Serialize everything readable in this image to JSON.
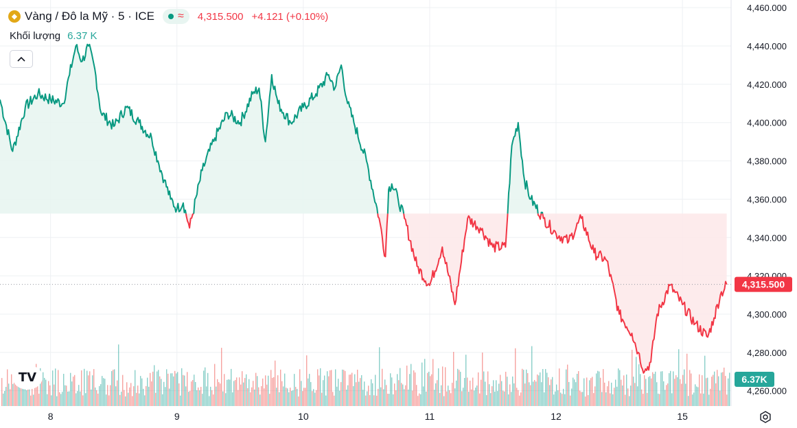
{
  "header": {
    "title": "Vàng / Đô la Mỹ · 5 · ICE",
    "price": "4,315.500",
    "change": "+4.121 (+0.10%)",
    "wave_glyph": "≈"
  },
  "volume": {
    "label": "Khối lượng",
    "value": "6.37 K"
  },
  "price_badge": "4,315.500",
  "volume_badge": "6.37K",
  "logo_text": "TV",
  "colors": {
    "up": "#089981",
    "down": "#f23645",
    "up_fill": "#e6f4f0",
    "down_fill": "#fde8e9",
    "vol_up": "#26a69a",
    "vol_down": "#ef5350",
    "grid": "#eef0f3",
    "text": "#131722",
    "baseline": "#b2b5be"
  },
  "icons": {
    "collapse": "chevron-up-icon",
    "settings": "gear-icon",
    "symbol": "gold-icon"
  },
  "chart_data": {
    "type": "area",
    "baseline_value": 4352.5,
    "last_price": 4315.5,
    "y_axis": {
      "ticks": [
        4260,
        4280,
        4300,
        4320,
        4340,
        4360,
        4380,
        4400,
        4420,
        4440,
        4460
      ],
      "tick_labels": [
        "4,260.000",
        "4,280.000",
        "4,300.000",
        "4,320.000",
        "4,340.000",
        "4,360.000",
        "4,380.000",
        "4,400.000",
        "4,420.000",
        "4,440.000",
        "4,460.000"
      ],
      "ylim": [
        4252,
        4464
      ]
    },
    "x_axis": {
      "ticks": [
        0.8,
        2.8,
        4.8,
        6.8,
        8.8,
        10.8
      ],
      "tick_labels": [
        "8",
        "9",
        "10",
        "11",
        "12",
        "15"
      ],
      "xlim": [
        0,
        11.57
      ]
    },
    "x": [
      0,
      0.2,
      0.4,
      0.6,
      0.8,
      1.0,
      1.1,
      1.2,
      1.3,
      1.4,
      1.5,
      1.6,
      1.8,
      2.0,
      2.2,
      2.4,
      2.5,
      2.6,
      2.7,
      2.8,
      2.9,
      3.0,
      3.2,
      3.4,
      3.6,
      3.8,
      4.0,
      4.1,
      4.2,
      4.3,
      4.4,
      4.6,
      4.8,
      5.0,
      5.2,
      5.3,
      5.4,
      5.5,
      5.6,
      5.8,
      6.0,
      6.1,
      6.15,
      6.2,
      6.3,
      6.4,
      6.6,
      6.8,
      7.0,
      7.2,
      7.4,
      7.6,
      7.8,
      8.0,
      8.1,
      8.2,
      8.3,
      8.4,
      8.6,
      8.8,
      9.0,
      9.2,
      9.4,
      9.6,
      9.8,
      10.0,
      10.1,
      10.2,
      10.3,
      10.4,
      10.6,
      10.8,
      11.0,
      11.2,
      11.3,
      11.4,
      11.5
    ],
    "values": [
      4412,
      4385,
      4408,
      4415,
      4412,
      4410,
      4425,
      4440,
      4432,
      4440,
      4428,
      4405,
      4398,
      4408,
      4400,
      4392,
      4380,
      4370,
      4360,
      4355,
      4358,
      4345,
      4375,
      4392,
      4405,
      4400,
      4415,
      4418,
      4390,
      4425,
      4410,
      4400,
      4408,
      4415,
      4425,
      4418,
      4430,
      4410,
      4400,
      4380,
      4350,
      4330,
      4365,
      4368,
      4360,
      4350,
      4325,
      4315,
      4335,
      4305,
      4350,
      4345,
      4335,
      4335,
      4388,
      4400,
      4370,
      4360,
      4350,
      4342,
      4338,
      4350,
      4332,
      4328,
      4300,
      4290,
      4280,
      4270,
      4275,
      4300,
      4315,
      4305,
      4295,
      4288,
      4298,
      4310,
      4315.5
    ],
    "volume": {
      "unit": "K",
      "last": 6.37,
      "max": 15
    }
  }
}
